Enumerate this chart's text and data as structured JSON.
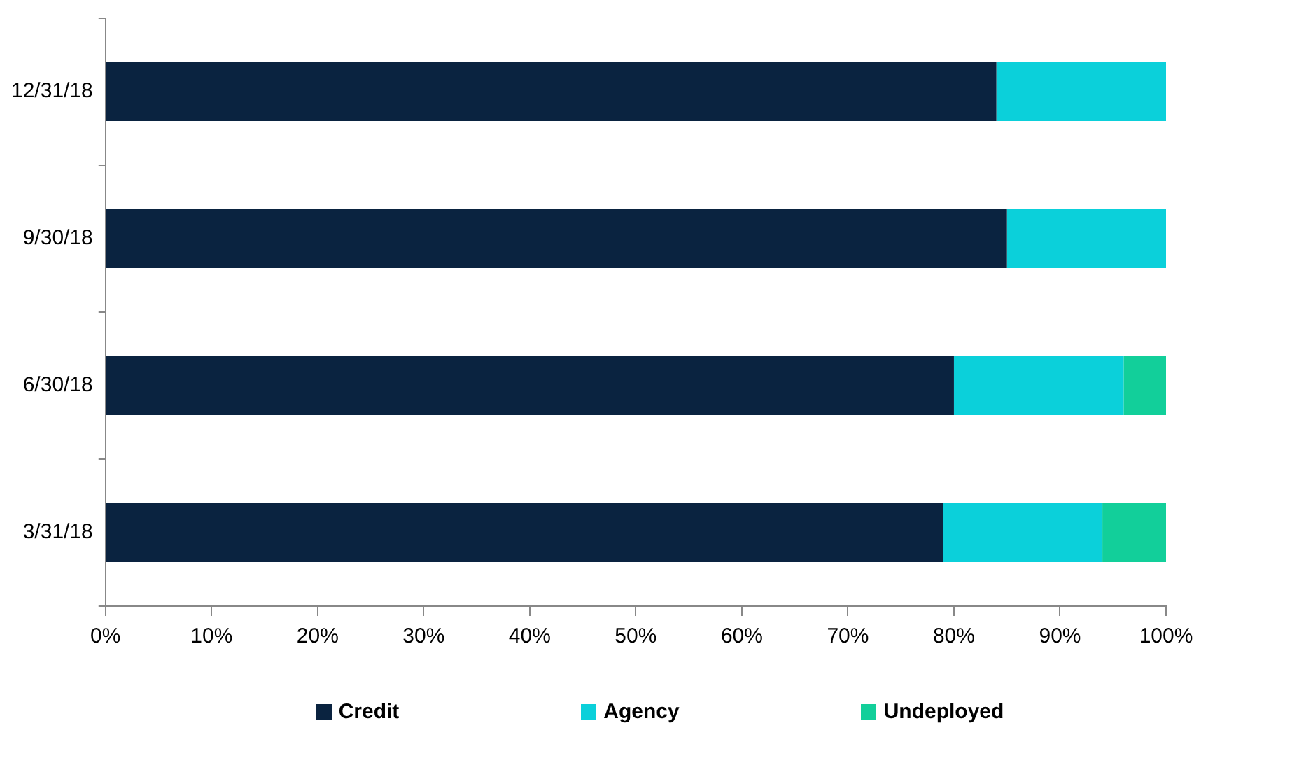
{
  "chart_data": {
    "type": "bar",
    "orientation": "horizontal",
    "stacked": true,
    "categories": [
      "12/31/18",
      "9/30/18",
      "6/30/18",
      "3/31/18"
    ],
    "series": [
      {
        "name": "Credit",
        "color": "#0a2340",
        "values": [
          84,
          85,
          80,
          79
        ]
      },
      {
        "name": "Agency",
        "color": "#0bd0da",
        "values": [
          16,
          15,
          16,
          15
        ]
      },
      {
        "name": "Undeployed",
        "color": "#12cf9a",
        "values": [
          0,
          0,
          4,
          6
        ]
      }
    ],
    "xlim": [
      0,
      100
    ],
    "xticks": [
      {
        "value": 0,
        "label": "0%"
      },
      {
        "value": 10,
        "label": "10%"
      },
      {
        "value": 20,
        "label": "20%"
      },
      {
        "value": 30,
        "label": "30%"
      },
      {
        "value": 40,
        "label": "40%"
      },
      {
        "value": 50,
        "label": "50%"
      },
      {
        "value": 60,
        "label": "60%"
      },
      {
        "value": 70,
        "label": "70%"
      },
      {
        "value": 80,
        "label": "80%"
      },
      {
        "value": 90,
        "label": "90%"
      },
      {
        "value": 100,
        "label": "100%"
      }
    ],
    "grid": false,
    "legend": "bottom"
  }
}
